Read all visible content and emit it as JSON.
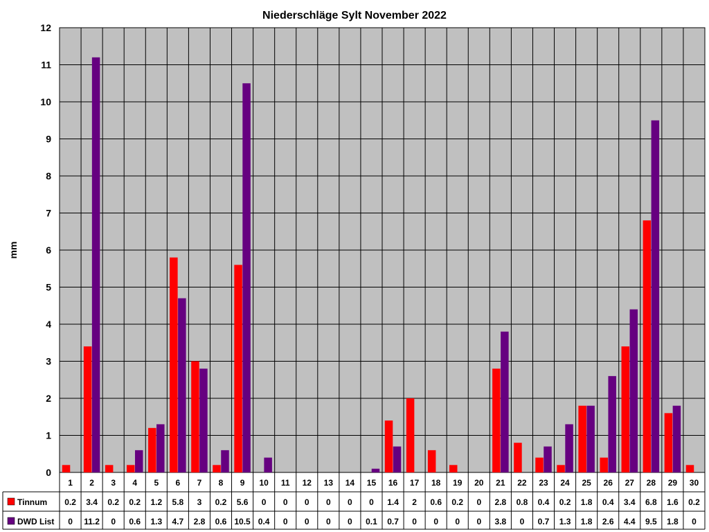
{
  "chart_data": {
    "type": "bar",
    "title": "Niederschläge Sylt November 2022",
    "xlabel": "",
    "ylabel": "mm",
    "ylim": [
      0,
      12
    ],
    "yticks": [
      0,
      1,
      2,
      3,
      4,
      5,
      6,
      7,
      8,
      9,
      10,
      11,
      12
    ],
    "grid": true,
    "data_table": true,
    "categories": [
      "1",
      "2",
      "3",
      "4",
      "5",
      "6",
      "7",
      "8",
      "9",
      "10",
      "11",
      "12",
      "13",
      "14",
      "15",
      "16",
      "17",
      "18",
      "19",
      "20",
      "21",
      "22",
      "23",
      "24",
      "25",
      "26",
      "27",
      "28",
      "29",
      "30"
    ],
    "series": [
      {
        "name": "Tinnum",
        "color": "#ff0000",
        "values": [
          0.2,
          3.4,
          0.2,
          0.2,
          1.2,
          5.8,
          3,
          0.2,
          5.6,
          0,
          0,
          0,
          0,
          0,
          0,
          1.4,
          2,
          0.6,
          0.2,
          0,
          2.8,
          0.8,
          0.4,
          0.2,
          1.8,
          0.4,
          3.4,
          6.8,
          1.6,
          0.2
        ]
      },
      {
        "name": "DWD List",
        "color": "#660080",
        "values": [
          0,
          11.2,
          0,
          0.6,
          1.3,
          4.7,
          2.8,
          0.6,
          10.5,
          0.4,
          0,
          0,
          0,
          0,
          0.1,
          0.7,
          0,
          0,
          0,
          0,
          3.8,
          0,
          0.7,
          1.3,
          1.8,
          2.6,
          4.4,
          9.5,
          1.8,
          0
        ]
      }
    ],
    "colors": {
      "plot_background": "#c0c0c0",
      "grid": "#000000"
    }
  }
}
